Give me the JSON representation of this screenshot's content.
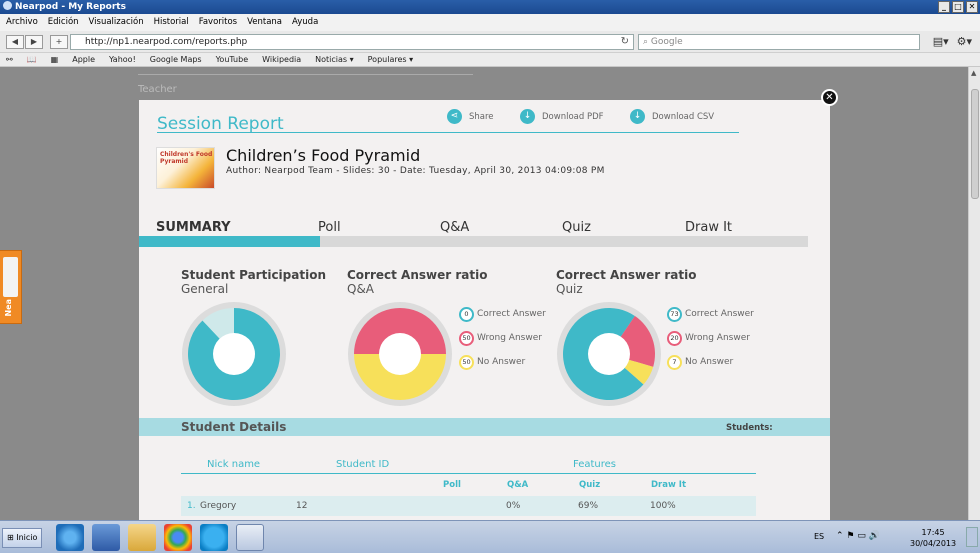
{
  "window": {
    "title": "Nearpod - My Reports"
  },
  "menu": [
    "Archivo",
    "Edición",
    "Visualización",
    "Historial",
    "Favoritos",
    "Ventana",
    "Ayuda"
  ],
  "nav": {
    "url": "http://np1.nearpod.com/reports.php",
    "search_placeholder": "Google"
  },
  "bookmarks": [
    "Apple",
    "Yahoo!",
    "Google Maps",
    "YouTube",
    "Wikipedia",
    "Noticias ▾",
    "Populares ▾"
  ],
  "background": {
    "teacher_label": "Teacher"
  },
  "side_tab": {
    "label": "Nea"
  },
  "report": {
    "title": "Session Report",
    "actions": {
      "share": "Share",
      "pdf": "Download PDF",
      "csv": "Download CSV"
    },
    "lesson": {
      "thumb_text": "Children's Food Pyramid",
      "title": "Children’s Food Pyramid",
      "meta": "Author: Nearpod Team - Slides: 30 - Date: Tuesday, April 30, 2013 04:09:08 PM"
    },
    "tabs": [
      "SUMMARY",
      "Poll",
      "Q&A",
      "Quiz",
      "Draw It"
    ],
    "tab_progress": 0.27
  },
  "charts": {
    "participation": {
      "title": "Student Participation",
      "sub": "General"
    },
    "qa": {
      "title": "Correct Answer ratio",
      "sub": "Q&A"
    },
    "quiz": {
      "title": "Correct Answer ratio",
      "sub": "Quiz"
    },
    "legend_labels": {
      "correct": "Correct Answer",
      "wrong": "Wrong Answer",
      "none": "No Answer"
    },
    "colors": {
      "correct": "#3fb9c8",
      "wrong": "#e85d7a",
      "none": "#f7e05a",
      "ring": "#dcdcdc",
      "part_rest": "#cfe9ea"
    }
  },
  "chart_data": [
    {
      "type": "pie",
      "title": "Student Participation",
      "subtitle": "General",
      "values": [
        88,
        12
      ]
    },
    {
      "type": "pie",
      "title": "Correct Answer ratio",
      "subtitle": "Q&A",
      "categories": [
        "Correct Answer",
        "Wrong Answer",
        "No Answer"
      ],
      "values": [
        0,
        50,
        50
      ]
    },
    {
      "type": "pie",
      "title": "Correct Answer ratio",
      "subtitle": "Quiz",
      "categories": [
        "Correct Answer",
        "Wrong Answer",
        "No Answer"
      ],
      "values": [
        73,
        20,
        7
      ]
    }
  ],
  "details": {
    "title": "Student Details",
    "students_label": "Students:",
    "headers": {
      "nick": "Nick name",
      "id": "Student ID",
      "features": "Features"
    },
    "feature_cols": [
      "Poll",
      "Q&A",
      "Quiz",
      "Draw It"
    ],
    "rows": [
      {
        "index": "1.",
        "name": "Gregory",
        "id": "12",
        "poll": "",
        "qa": "0%",
        "quiz": "69%",
        "draw": "100%"
      }
    ]
  },
  "taskbar": {
    "start": "Inicio",
    "lang": "ES",
    "time": "17:45",
    "date": "30/04/2013"
  }
}
